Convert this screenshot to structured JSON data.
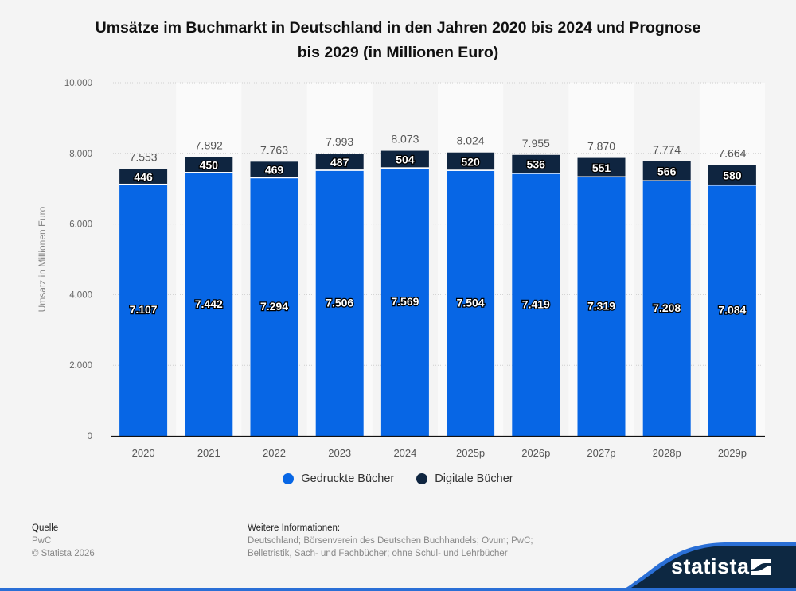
{
  "title": "Umsätze im Buchmarkt in Deutschland in den Jahren 2020 bis 2024 und Prognose bis 2029 (in Millionen Euro)",
  "title_lines": [
    "Umsätze im Buchmarkt in Deutschland in den Jahren 2020 bis 2024 und Prognose",
    "bis 2029 (in Millionen Euro)"
  ],
  "colors": {
    "printed": "#0766e5",
    "digital": "#0f2540",
    "background": "#f4f4f4",
    "band": "#fafafa"
  },
  "chart_data": {
    "type": "bar",
    "stacked": true,
    "title": "Umsätze im Buchmarkt in Deutschland in den Jahren 2020 bis 2024 und Prognose bis 2029 (in Millionen Euro)",
    "xlabel": "",
    "ylabel": "Umsatz in Millionen Euro",
    "ylim": [
      0,
      10000
    ],
    "yticks": [
      0,
      2000,
      4000,
      6000,
      8000,
      10000
    ],
    "ytick_labels": [
      "0",
      "2.000",
      "4.000",
      "6.000",
      "8.000",
      "10.000"
    ],
    "grid": true,
    "legend_position": "bottom",
    "categories": [
      "2020",
      "2021",
      "2022",
      "2023",
      "2024",
      "2025p",
      "2026p",
      "2027p",
      "2028p",
      "2029p"
    ],
    "series": [
      {
        "name": "Gedruckte Bücher",
        "color": "#0766e5",
        "values": [
          7107,
          7442,
          7294,
          7506,
          7569,
          7504,
          7419,
          7319,
          7208,
          7084
        ],
        "labels": [
          "7.107",
          "7.442",
          "7.294",
          "7.506",
          "7.569",
          "7.504",
          "7.419",
          "7.319",
          "7.208",
          "7.084"
        ]
      },
      {
        "name": "Digitale Bücher",
        "color": "#0f2540",
        "values": [
          446,
          450,
          469,
          487,
          504,
          520,
          536,
          551,
          566,
          580
        ],
        "labels": [
          "446",
          "450",
          "469",
          "487",
          "504",
          "520",
          "536",
          "551",
          "566",
          "580"
        ]
      }
    ],
    "totals": [
      7553,
      7892,
      7763,
      7993,
      8073,
      8024,
      7955,
      7870,
      7774,
      7664
    ],
    "total_labels": [
      "7.553",
      "7.892",
      "7.763",
      "7.993",
      "8.073",
      "8.024",
      "7.955",
      "7.870",
      "7.774",
      "7.664"
    ]
  },
  "legend": [
    {
      "label": "Gedruckte Bücher",
      "color": "#0766e5"
    },
    {
      "label": "Digitale Bücher",
      "color": "#0f2540"
    }
  ],
  "footer": {
    "source_heading": "Quelle",
    "source": "PwC",
    "copyright": "© Statista 2026",
    "info_heading": "Weitere Informationen:",
    "info_line1": "Deutschland; Börsenverein des Deutschen Buchhandels; Ovum; PwC;",
    "info_line2": "Belletristik, Sach- und Fachbücher; ohne Schul- und Lehrbücher"
  },
  "brand": {
    "name": "statista"
  }
}
